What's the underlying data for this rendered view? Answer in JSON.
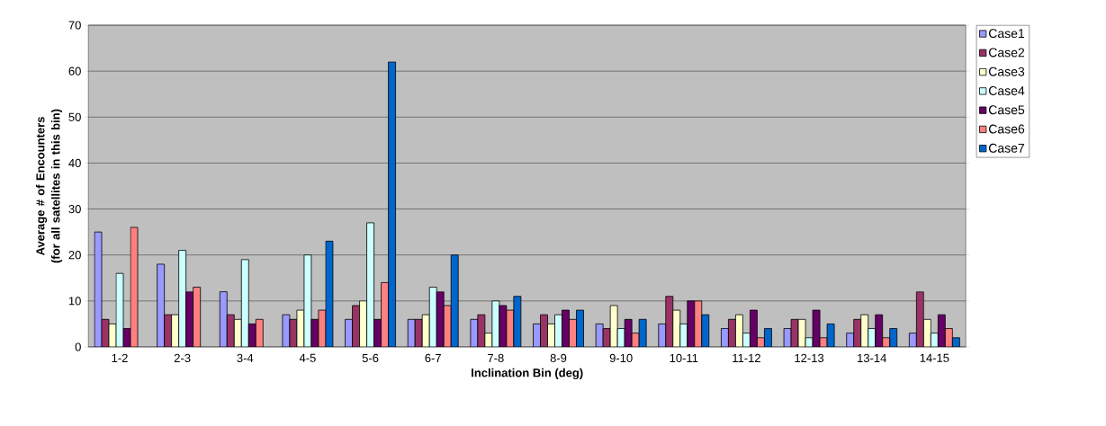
{
  "chart_data": {
    "type": "bar",
    "xlabel": "Inclination Bin (deg)",
    "ylabel": "Average # of Encounters (for all satellites in this bin)",
    "categories": [
      "1-2",
      "2-3",
      "3-4",
      "4-5",
      "5-6",
      "6-7",
      "7-8",
      "8-9",
      "9-10",
      "10-11",
      "11-12",
      "12-13",
      "13-14",
      "14-15"
    ],
    "series": [
      {
        "name": "Case1",
        "color": "#9999ff",
        "values": [
          25,
          18,
          12,
          7,
          6,
          6,
          6,
          5,
          5,
          5,
          4,
          4,
          3,
          3
        ]
      },
      {
        "name": "Case2",
        "color": "#993366",
        "values": [
          6,
          7,
          7,
          6,
          9,
          6,
          7,
          7,
          4,
          11,
          6,
          6,
          6,
          12
        ]
      },
      {
        "name": "Case3",
        "color": "#ffffcc",
        "values": [
          5,
          7,
          6,
          8,
          10,
          7,
          3,
          5,
          9,
          8,
          7,
          6,
          7,
          6
        ]
      },
      {
        "name": "Case4",
        "color": "#ccffff",
        "values": [
          16,
          21,
          19,
          20,
          27,
          13,
          10,
          7,
          4,
          5,
          3,
          2,
          4,
          3
        ]
      },
      {
        "name": "Case5",
        "color": "#660066",
        "values": [
          4,
          12,
          5,
          6,
          6,
          12,
          9,
          8,
          6,
          10,
          8,
          8,
          7,
          7
        ]
      },
      {
        "name": "Case6",
        "color": "#ff8080",
        "values": [
          26,
          13,
          6,
          8,
          14,
          9,
          8,
          6,
          3,
          10,
          2,
          2,
          2,
          4
        ]
      },
      {
        "name": "Case7",
        "color": "#0066cc",
        "values": [
          null,
          null,
          null,
          23,
          62,
          20,
          11,
          8,
          6,
          7,
          4,
          5,
          4,
          2
        ]
      }
    ],
    "ylim": [
      0,
      70
    ],
    "yticks": [
      0,
      10,
      20,
      30,
      40,
      50,
      60,
      70
    ],
    "grid": "y",
    "legend": "right"
  }
}
